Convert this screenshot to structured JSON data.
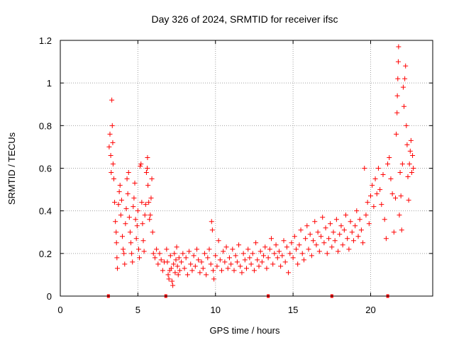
{
  "chart_data": {
    "type": "scatter",
    "title": "Day 326 of 2024, SRMTID for receiver ifsc",
    "xlabel": "GPS time / hours",
    "ylabel": "SRMTID / TECUs",
    "xlim": [
      0,
      24
    ],
    "ylim": [
      0,
      1.2
    ],
    "grid": true,
    "x_ticks": [
      0,
      5,
      10,
      15,
      20
    ],
    "x_tick_labels": [
      "0",
      "5",
      "10",
      "15",
      "20"
    ],
    "y_ticks": [
      0,
      0.2,
      0.4,
      0.6,
      0.8,
      1.0,
      1.2
    ],
    "y_tick_labels": [
      "0",
      "0.2",
      "0.4",
      "0.6",
      "0.8",
      "1",
      "1.2"
    ],
    "marker": "plus",
    "series_color": "#ff0000",
    "series": [
      {
        "name": "SRMTID",
        "points": [
          [
            3.15,
            0.7
          ],
          [
            3.2,
            0.76
          ],
          [
            3.25,
            0.66
          ],
          [
            3.28,
            0.58
          ],
          [
            3.32,
            0.92
          ],
          [
            3.35,
            0.8
          ],
          [
            3.38,
            0.72
          ],
          [
            3.4,
            0.62
          ],
          [
            3.45,
            0.55
          ],
          [
            3.5,
            0.44
          ],
          [
            3.55,
            0.35
          ],
          [
            3.6,
            0.3
          ],
          [
            3.62,
            0.25
          ],
          [
            3.65,
            0.18
          ],
          [
            3.68,
            0.13
          ],
          [
            3.75,
            0.43
          ],
          [
            3.8,
            0.49
          ],
          [
            3.85,
            0.52
          ],
          [
            3.9,
            0.38
          ],
          [
            3.95,
            0.45
          ],
          [
            4.0,
            0.28
          ],
          [
            4.05,
            0.22
          ],
          [
            4.1,
            0.2
          ],
          [
            4.15,
            0.15
          ],
          [
            4.2,
            0.34
          ],
          [
            4.25,
            0.41
          ],
          [
            4.3,
            0.55
          ],
          [
            4.35,
            0.48
          ],
          [
            4.4,
            0.58
          ],
          [
            4.45,
            0.37
          ],
          [
            4.5,
            0.3
          ],
          [
            4.55,
            0.25
          ],
          [
            4.6,
            0.2
          ],
          [
            4.65,
            0.16
          ],
          [
            4.7,
            0.42
          ],
          [
            4.75,
            0.46
          ],
          [
            4.8,
            0.53
          ],
          [
            4.85,
            0.36
          ],
          [
            4.9,
            0.27
          ],
          [
            4.95,
            0.33
          ],
          [
            5.0,
            0.4
          ],
          [
            5.05,
            0.22
          ],
          [
            5.1,
            0.18
          ],
          [
            5.15,
            0.61
          ],
          [
            5.2,
            0.62
          ],
          [
            5.25,
            0.44
          ],
          [
            5.3,
            0.34
          ],
          [
            5.35,
            0.26
          ],
          [
            5.4,
            0.21
          ],
          [
            5.45,
            0.38
          ],
          [
            5.5,
            0.43
          ],
          [
            5.55,
            0.58
          ],
          [
            5.6,
            0.6
          ],
          [
            5.62,
            0.65
          ],
          [
            5.65,
            0.52
          ],
          [
            5.7,
            0.44
          ],
          [
            5.75,
            0.36
          ],
          [
            5.8,
            0.38
          ],
          [
            5.85,
            0.46
          ],
          [
            5.9,
            0.55
          ],
          [
            5.95,
            0.3
          ],
          [
            6.0,
            0.2
          ],
          [
            6.1,
            0.18
          ],
          [
            6.2,
            0.22
          ],
          [
            6.3,
            0.15
          ],
          [
            6.4,
            0.2
          ],
          [
            6.5,
            0.17
          ],
          [
            6.6,
            0.12
          ],
          [
            6.7,
            0.16
          ],
          [
            6.85,
            0.22
          ],
          [
            6.9,
            0.16
          ],
          [
            6.95,
            0.1
          ],
          [
            7.0,
            0.08
          ],
          [
            7.05,
            0.12
          ],
          [
            7.1,
            0.19
          ],
          [
            7.15,
            0.13
          ],
          [
            7.2,
            0.07
          ],
          [
            7.25,
            0.05
          ],
          [
            7.3,
            0.15
          ],
          [
            7.35,
            0.2
          ],
          [
            7.4,
            0.11
          ],
          [
            7.45,
            0.17
          ],
          [
            7.5,
            0.23
          ],
          [
            7.55,
            0.14
          ],
          [
            7.6,
            0.1
          ],
          [
            7.65,
            0.18
          ],
          [
            7.7,
            0.12
          ],
          [
            7.8,
            0.16
          ],
          [
            7.9,
            0.2
          ],
          [
            8.0,
            0.13
          ],
          [
            8.1,
            0.18
          ],
          [
            8.2,
            0.1
          ],
          [
            8.3,
            0.21
          ],
          [
            8.4,
            0.15
          ],
          [
            8.5,
            0.12
          ],
          [
            8.6,
            0.19
          ],
          [
            8.7,
            0.14
          ],
          [
            8.8,
            0.22
          ],
          [
            8.9,
            0.17
          ],
          [
            9.0,
            0.11
          ],
          [
            9.1,
            0.16
          ],
          [
            9.2,
            0.13
          ],
          [
            9.3,
            0.2
          ],
          [
            9.4,
            0.1
          ],
          [
            9.5,
            0.18
          ],
          [
            9.6,
            0.22
          ],
          [
            9.7,
            0.15
          ],
          [
            9.75,
            0.35
          ],
          [
            9.8,
            0.31
          ],
          [
            9.85,
            0.12
          ],
          [
            9.9,
            0.08
          ],
          [
            10.0,
            0.19
          ],
          [
            10.1,
            0.14
          ],
          [
            10.2,
            0.26
          ],
          [
            10.3,
            0.17
          ],
          [
            10.4,
            0.12
          ],
          [
            10.5,
            0.21
          ],
          [
            10.6,
            0.16
          ],
          [
            10.7,
            0.23
          ],
          [
            10.8,
            0.13
          ],
          [
            10.9,
            0.18
          ],
          [
            11.0,
            0.15
          ],
          [
            11.1,
            0.22
          ],
          [
            11.2,
            0.12
          ],
          [
            11.3,
            0.19
          ],
          [
            11.4,
            0.16
          ],
          [
            11.5,
            0.24
          ],
          [
            11.6,
            0.14
          ],
          [
            11.7,
            0.11
          ],
          [
            11.8,
            0.2
          ],
          [
            11.9,
            0.17
          ],
          [
            12.0,
            0.13
          ],
          [
            12.1,
            0.22
          ],
          [
            12.2,
            0.18
          ],
          [
            12.3,
            0.15
          ],
          [
            12.4,
            0.2
          ],
          [
            12.5,
            0.12
          ],
          [
            12.6,
            0.25
          ],
          [
            12.7,
            0.17
          ],
          [
            12.8,
            0.14
          ],
          [
            12.9,
            0.21
          ],
          [
            13.0,
            0.16
          ],
          [
            13.1,
            0.19
          ],
          [
            13.2,
            0.23
          ],
          [
            13.3,
            0.13
          ],
          [
            13.4,
            0.18
          ],
          [
            13.5,
            0.22
          ],
          [
            13.6,
            0.27
          ],
          [
            13.7,
            0.15
          ],
          [
            13.8,
            0.2
          ],
          [
            13.9,
            0.24
          ],
          [
            14.0,
            0.18
          ],
          [
            14.1,
            0.21
          ],
          [
            14.2,
            0.14
          ],
          [
            14.3,
            0.19
          ],
          [
            14.4,
            0.26
          ],
          [
            14.5,
            0.16
          ],
          [
            14.6,
            0.23
          ],
          [
            14.7,
            0.11
          ],
          [
            14.8,
            0.2
          ],
          [
            14.9,
            0.25
          ],
          [
            15.0,
            0.18
          ],
          [
            15.1,
            0.28
          ],
          [
            15.2,
            0.22
          ],
          [
            15.3,
            0.15
          ],
          [
            15.4,
            0.24
          ],
          [
            15.5,
            0.31
          ],
          [
            15.6,
            0.2
          ],
          [
            15.7,
            0.17
          ],
          [
            15.8,
            0.27
          ],
          [
            15.9,
            0.33
          ],
          [
            16.0,
            0.22
          ],
          [
            16.1,
            0.29
          ],
          [
            16.2,
            0.19
          ],
          [
            16.3,
            0.26
          ],
          [
            16.4,
            0.35
          ],
          [
            16.5,
            0.24
          ],
          [
            16.6,
            0.3
          ],
          [
            16.7,
            0.21
          ],
          [
            16.8,
            0.28
          ],
          [
            16.9,
            0.37
          ],
          [
            17.0,
            0.25
          ],
          [
            17.1,
            0.32
          ],
          [
            17.2,
            0.2
          ],
          [
            17.3,
            0.27
          ],
          [
            17.4,
            0.34
          ],
          [
            17.5,
            0.23
          ],
          [
            17.6,
            0.3
          ],
          [
            17.7,
            0.26
          ],
          [
            17.8,
            0.36
          ],
          [
            17.9,
            0.21
          ],
          [
            18.0,
            0.29
          ],
          [
            18.1,
            0.33
          ],
          [
            18.2,
            0.24
          ],
          [
            18.3,
            0.31
          ],
          [
            18.4,
            0.38
          ],
          [
            18.5,
            0.27
          ],
          [
            18.6,
            0.22
          ],
          [
            18.7,
            0.35
          ],
          [
            18.8,
            0.3
          ],
          [
            18.9,
            0.26
          ],
          [
            19.0,
            0.33
          ],
          [
            19.1,
            0.4
          ],
          [
            19.2,
            0.28
          ],
          [
            19.3,
            0.36
          ],
          [
            19.4,
            0.31
          ],
          [
            19.5,
            0.25
          ],
          [
            19.6,
            0.6
          ],
          [
            19.7,
            0.38
          ],
          [
            19.8,
            0.44
          ],
          [
            19.9,
            0.34
          ],
          [
            20.0,
            0.47
          ],
          [
            20.1,
            0.52
          ],
          [
            20.2,
            0.42
          ],
          [
            20.3,
            0.55
          ],
          [
            20.4,
            0.48
          ],
          [
            20.5,
            0.6
          ],
          [
            20.6,
            0.5
          ],
          [
            20.7,
            0.43
          ],
          [
            20.8,
            0.57
          ],
          [
            20.9,
            0.36
          ],
          [
            21.0,
            0.27
          ],
          [
            21.1,
            0.62
          ],
          [
            21.2,
            0.65
          ],
          [
            21.3,
            0.55
          ],
          [
            21.4,
            0.48
          ],
          [
            21.5,
            0.3
          ],
          [
            21.6,
            0.46
          ],
          [
            21.65,
            0.76
          ],
          [
            21.7,
            0.86
          ],
          [
            21.72,
            0.94
          ],
          [
            21.75,
            1.02
          ],
          [
            21.78,
            1.1
          ],
          [
            21.8,
            1.17
          ],
          [
            21.85,
            0.38
          ],
          [
            21.9,
            0.58
          ],
          [
            21.95,
            0.47
          ],
          [
            22.0,
            0.31
          ],
          [
            22.05,
            0.62
          ],
          [
            22.1,
            0.98
          ],
          [
            22.15,
            0.89
          ],
          [
            22.2,
            1.02
          ],
          [
            22.25,
            1.08
          ],
          [
            22.3,
            0.8
          ],
          [
            22.35,
            0.71
          ],
          [
            22.4,
            0.56
          ],
          [
            22.45,
            0.45
          ],
          [
            22.5,
            0.62
          ],
          [
            22.55,
            0.68
          ],
          [
            22.6,
            0.73
          ],
          [
            22.65,
            0.58
          ],
          [
            22.7,
            0.66
          ],
          [
            22.75,
            0.6
          ]
        ]
      }
    ],
    "axis_markers_x": [
      3.1,
      6.8,
      13.4,
      17.5,
      21.1
    ]
  }
}
